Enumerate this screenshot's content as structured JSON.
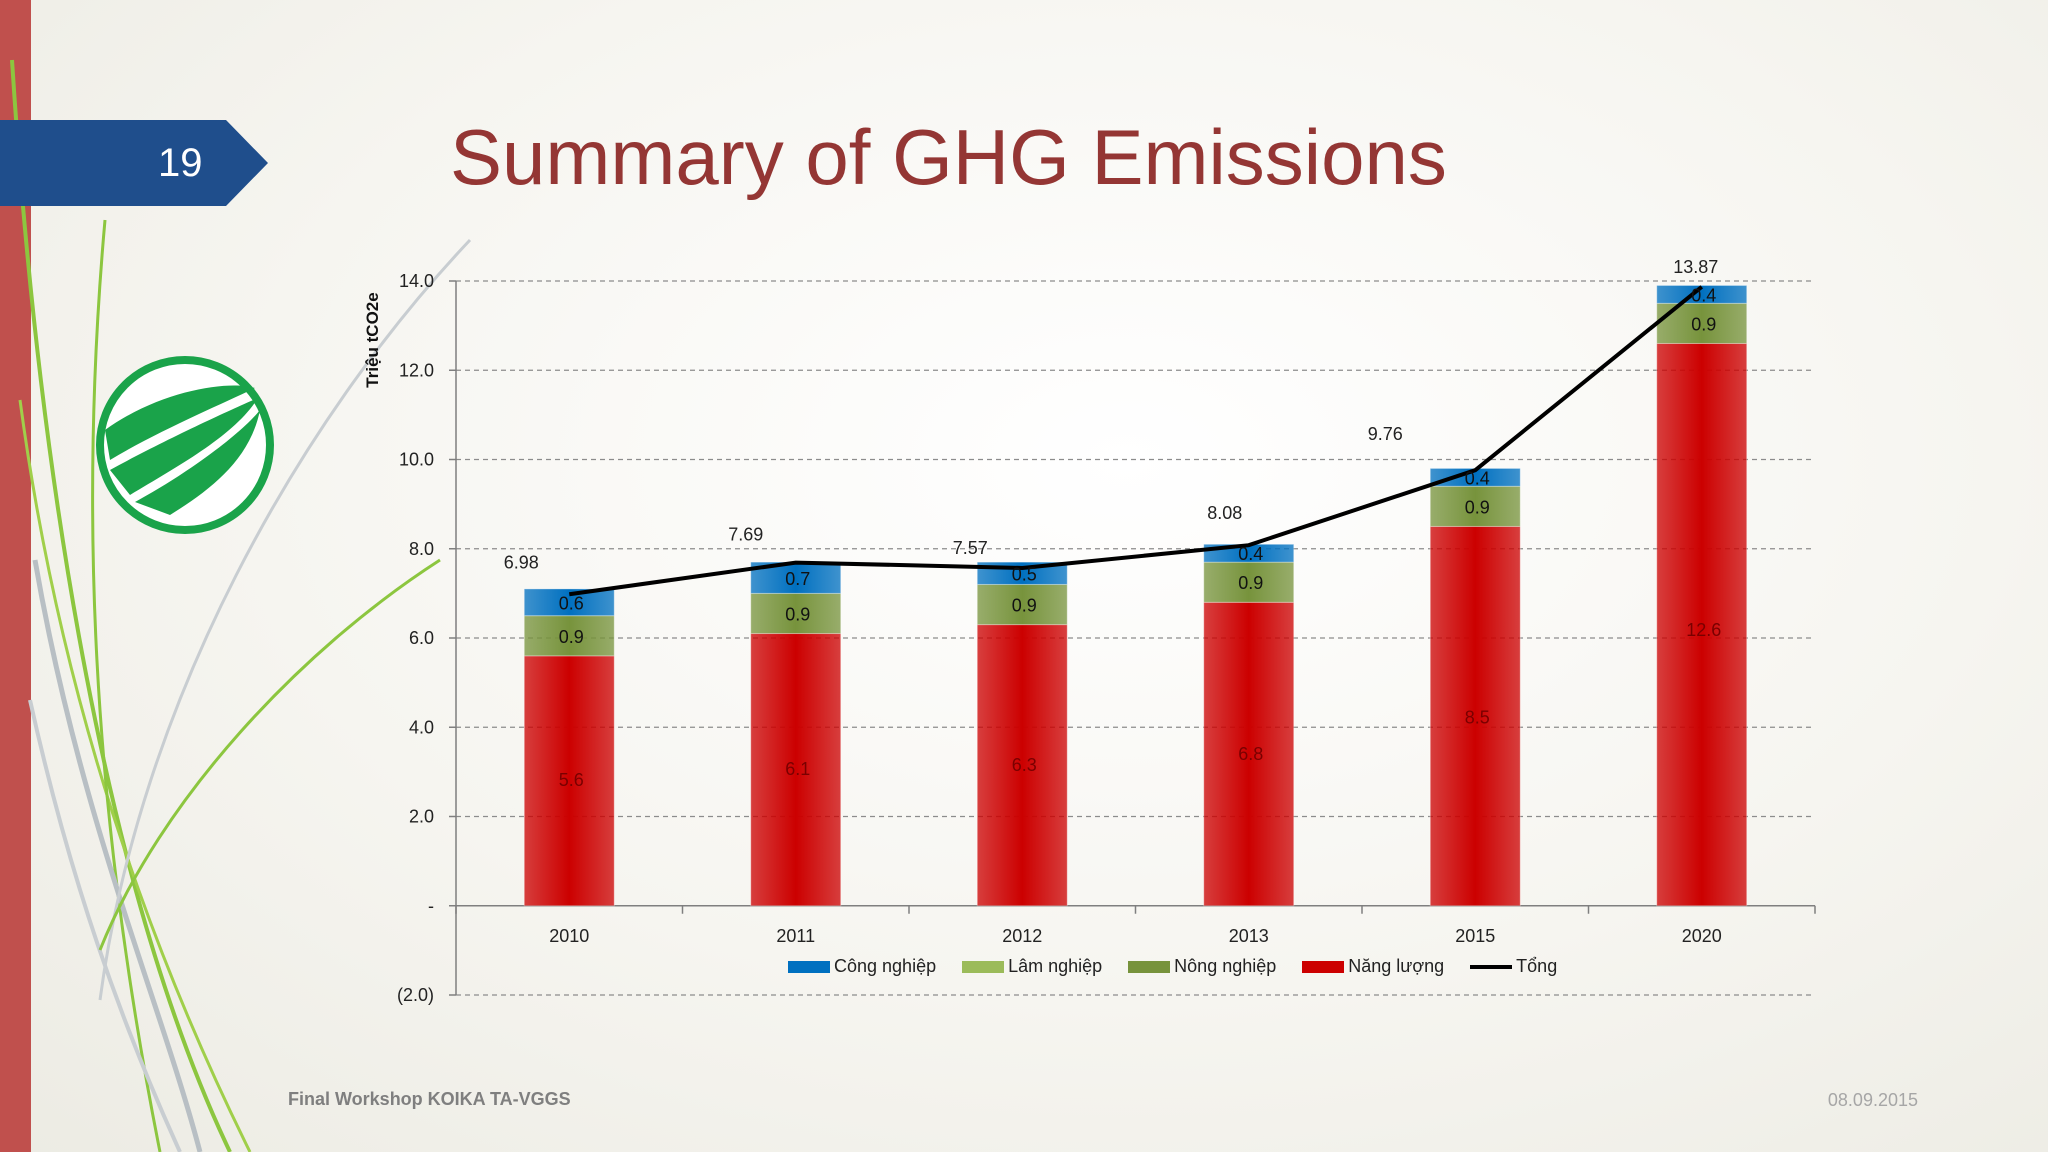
{
  "slide": {
    "number": "19",
    "title": "Summary of GHG Emissions",
    "footer_left": "Final Workshop KOIKA TA-VGGS",
    "footer_right": "08.09.2015"
  },
  "colors": {
    "accent_bar": "#c0504d",
    "badge": "#1f4e8c",
    "title": "#943634",
    "logo": "#1aa34a"
  },
  "icons": {
    "logo": "globe-logo-icon"
  },
  "chart_data": {
    "type": "bar",
    "stacked": true,
    "title": "",
    "xlabel": "",
    "ylabel": "Triệu tCO2e",
    "ylim": [
      -2,
      14
    ],
    "yticks": [
      {
        "value": 14,
        "label": "14.0"
      },
      {
        "value": 12,
        "label": "12.0"
      },
      {
        "value": 10,
        "label": "10.0"
      },
      {
        "value": 8,
        "label": "8.0"
      },
      {
        "value": 6,
        "label": "6.0"
      },
      {
        "value": 4,
        "label": "4.0"
      },
      {
        "value": 2,
        "label": "2.0"
      },
      {
        "value": 0,
        "label": "-"
      },
      {
        "value": -2,
        "label": "(2.0)"
      }
    ],
    "grid": true,
    "legend_position": "bottom",
    "categories": [
      "2010",
      "2011",
      "2012",
      "2013",
      "2015",
      "2020"
    ],
    "series": [
      {
        "name": "Năng lượng",
        "color": "#cc0000",
        "values": [
          5.6,
          6.1,
          6.3,
          6.8,
          8.5,
          12.6
        ],
        "labels": [
          "5.6",
          "6.1",
          "6.3",
          "6.8",
          "8.5",
          "12.6"
        ]
      },
      {
        "name": "Nông nghiệp",
        "color": "#77933c",
        "values": [
          0.9,
          0.9,
          0.9,
          0.9,
          0.9,
          0.9
        ],
        "labels": [
          "0.9",
          "0.9",
          "0.9",
          "0.9",
          "0.9",
          "0.9"
        ]
      },
      {
        "name": "Lâm nghiệp",
        "color": "#9bbb59",
        "values": [
          0,
          0,
          0,
          0,
          0,
          0
        ],
        "labels": []
      },
      {
        "name": "Công nghiệp",
        "color": "#0070c0",
        "values": [
          0.6,
          0.7,
          0.5,
          0.4,
          0.4,
          0.4
        ],
        "labels": [
          "0.6",
          "0.7",
          "0.5",
          "0.4",
          "0.4",
          "0.4"
        ]
      }
    ],
    "total": {
      "name": "Tổng",
      "color": "#000000",
      "values": [
        6.98,
        7.69,
        7.57,
        8.08,
        9.76,
        13.87
      ],
      "labels": [
        "6.98",
        "7.69",
        "7.57",
        "8.08",
        "9.76",
        "13.87"
      ]
    },
    "legend_order": [
      "Công nghiệp",
      "Lâm nghiệp",
      "Nông nghiệp",
      "Năng lượng",
      "Tổng"
    ]
  }
}
